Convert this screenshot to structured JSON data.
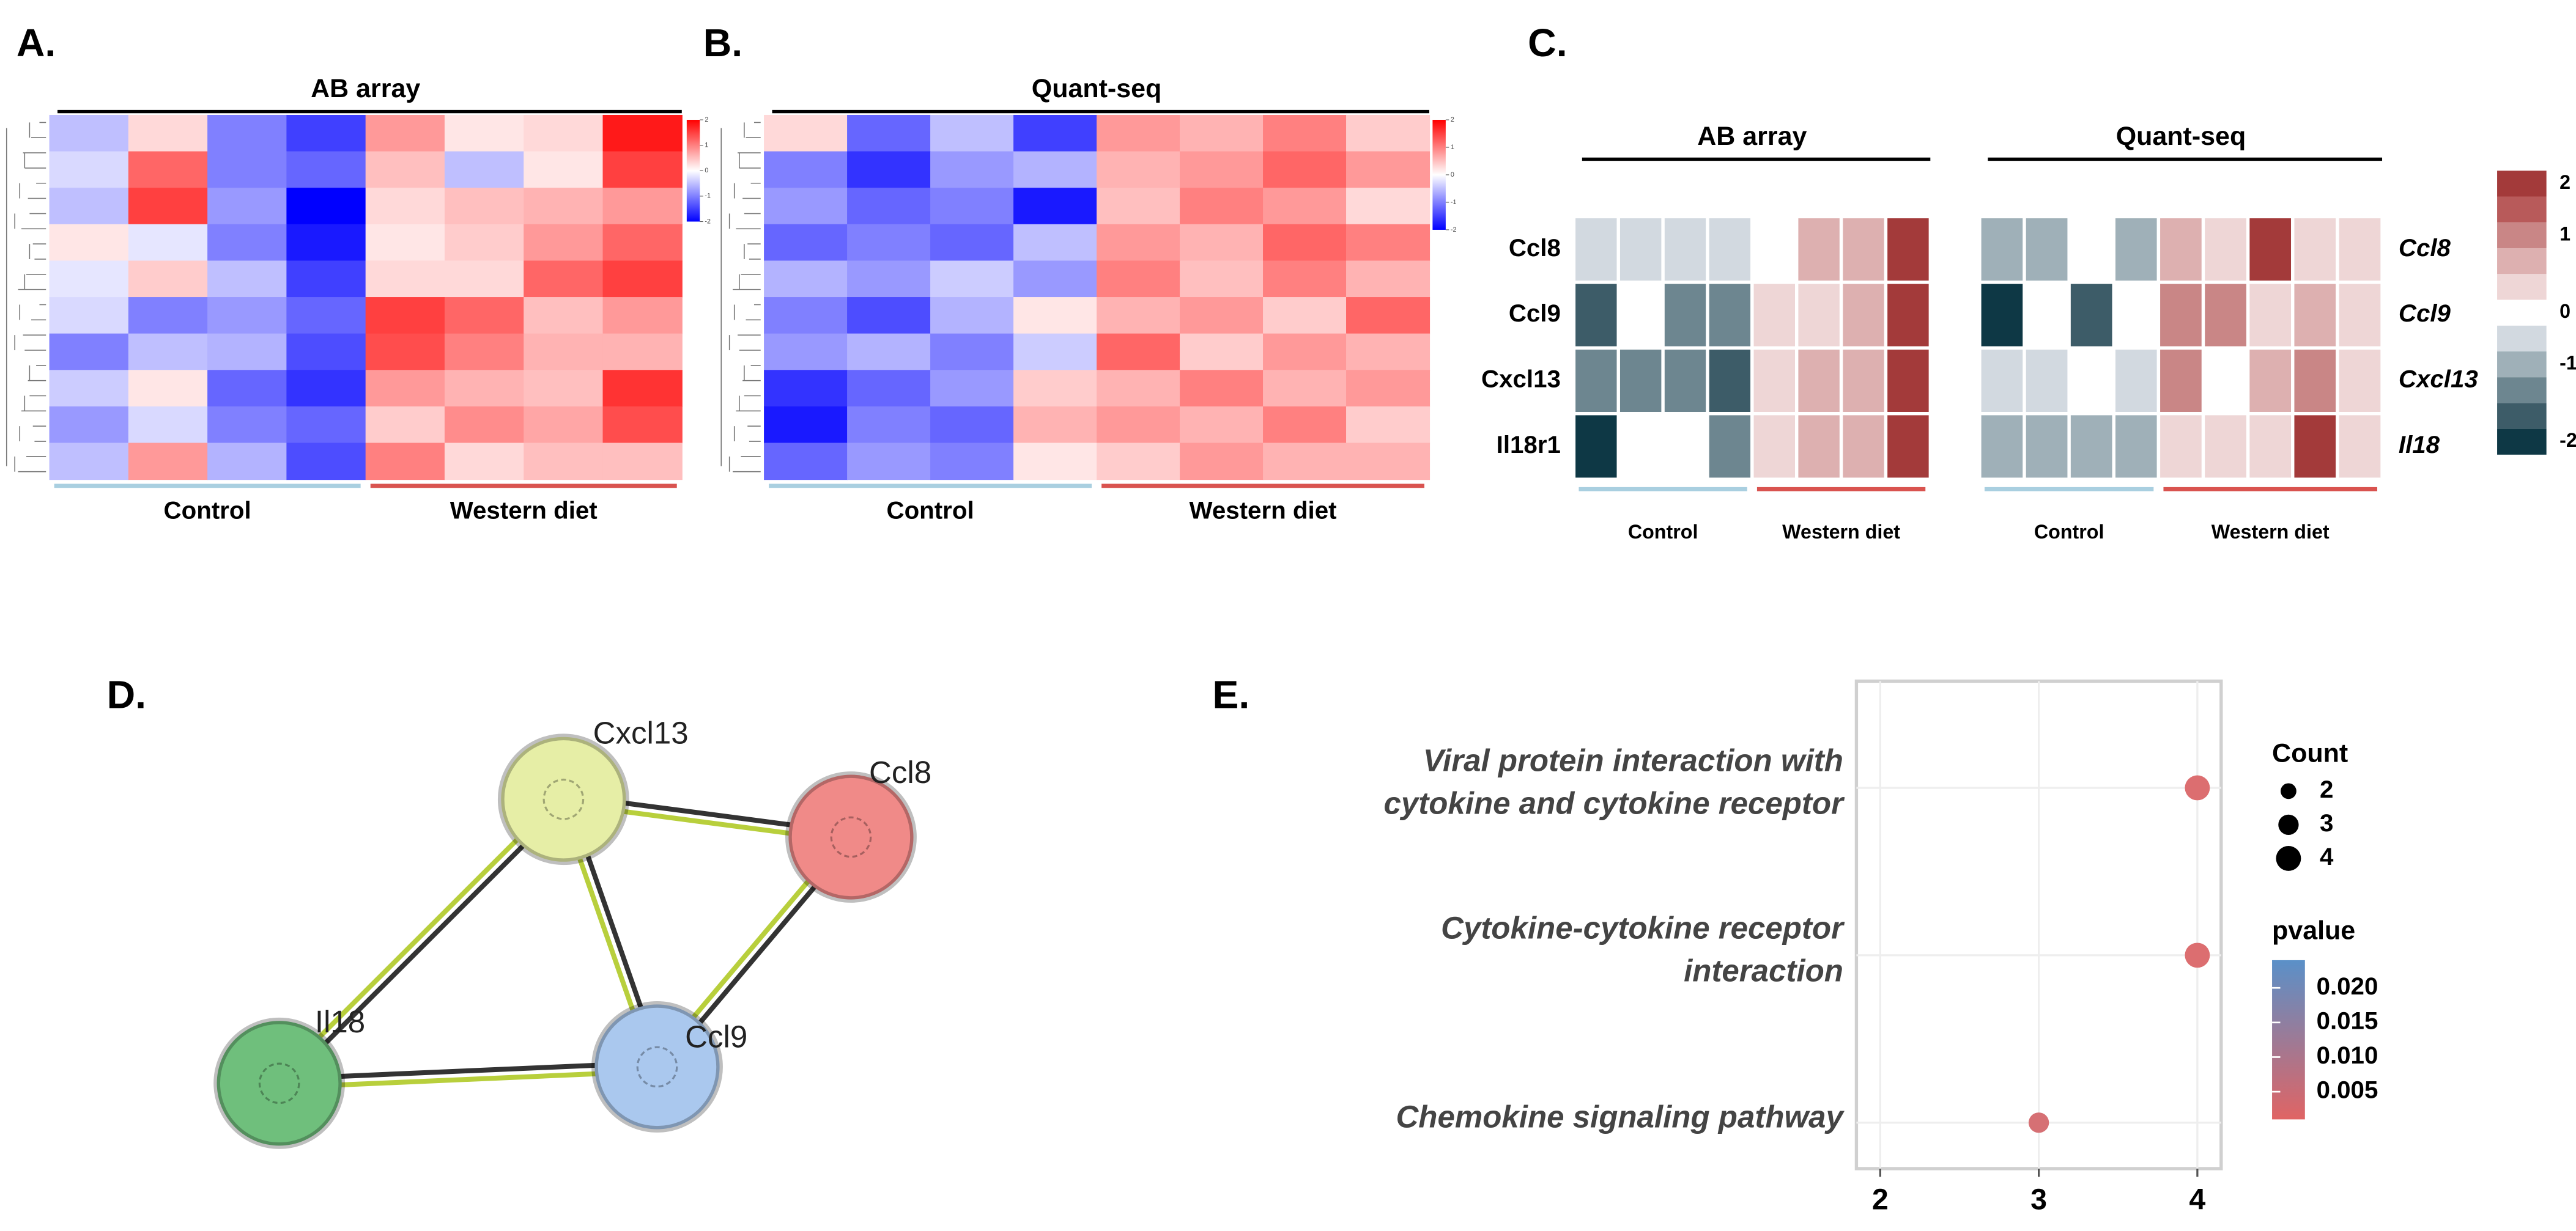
{
  "chart_data": [
    {
      "type": "heatmap",
      "panel": "A.",
      "title": "AB array",
      "zlim": [
        -2,
        2
      ],
      "zticks": [
        2,
        1,
        0,
        -1,
        -2
      ],
      "groups": [
        {
          "name": "Control",
          "columns": 4,
          "color": "#a9cfe0"
        },
        {
          "name": "Western diet",
          "columns": 4,
          "color": "#d9534f"
        }
      ],
      "values": [
        [
          -0.5,
          0.3,
          -1,
          -1.5,
          0.8,
          0.2,
          0.3,
          1.8
        ],
        [
          -0.3,
          1.2,
          -1,
          -1.2,
          0.5,
          -0.5,
          0.2,
          1.5
        ],
        [
          -0.5,
          1.5,
          -0.8,
          -2,
          0.3,
          0.5,
          0.6,
          0.8
        ],
        [
          0.2,
          -0.2,
          -1,
          -1.8,
          0.2,
          0.4,
          0.8,
          1.2
        ],
        [
          -0.2,
          0.4,
          -0.5,
          -1.5,
          0.3,
          0.3,
          1.2,
          1.5
        ],
        [
          -0.3,
          -1,
          -0.8,
          -1.2,
          1.5,
          1.2,
          0.5,
          0.8
        ],
        [
          -1,
          -0.5,
          -0.6,
          -1.4,
          1.4,
          1,
          0.6,
          0.6
        ],
        [
          -0.4,
          0.2,
          -1.2,
          -1.6,
          0.8,
          0.6,
          0.5,
          1.6
        ],
        [
          -0.8,
          -0.3,
          -1,
          -1.2,
          0.4,
          0.9,
          0.7,
          1.4
        ],
        [
          -0.5,
          0.8,
          -0.6,
          -1.4,
          1,
          0.3,
          0.5,
          0.5
        ]
      ]
    },
    {
      "type": "heatmap",
      "panel": "B.",
      "title": "Quant-seq",
      "zlim": [
        -2,
        2
      ],
      "zticks": [
        2,
        1,
        0,
        -1,
        -2
      ],
      "groups": [
        {
          "name": "Control",
          "columns": 4,
          "color": "#a9cfe0"
        },
        {
          "name": "Western diet",
          "columns": 4,
          "color": "#d9534f"
        }
      ],
      "values": [
        [
          0.3,
          -1.2,
          -0.5,
          -1.5,
          0.8,
          0.6,
          1,
          0.4
        ],
        [
          -1,
          -1.6,
          -0.8,
          -0.6,
          0.6,
          0.8,
          1.2,
          0.8
        ],
        [
          -0.8,
          -1.2,
          -1,
          -1.8,
          0.5,
          1,
          0.8,
          0.3
        ],
        [
          -1.2,
          -1,
          -1.2,
          -0.5,
          0.8,
          0.6,
          1.2,
          1
        ],
        [
          -0.6,
          -0.8,
          -0.4,
          -0.8,
          1,
          0.5,
          1,
          0.6
        ],
        [
          -1,
          -1.4,
          -0.6,
          0.2,
          0.6,
          0.8,
          0.4,
          1.2
        ],
        [
          -0.8,
          -0.6,
          -1,
          -0.4,
          1.2,
          0.4,
          0.8,
          0.6
        ],
        [
          -1.6,
          -1.2,
          -0.8,
          0.4,
          0.6,
          1,
          0.6,
          0.8
        ],
        [
          -1.8,
          -1,
          -1.2,
          0.6,
          0.8,
          0.6,
          1,
          0.4
        ],
        [
          -1.2,
          -0.8,
          -1,
          0.2,
          0.4,
          0.8,
          0.6,
          0.6
        ]
      ]
    },
    {
      "type": "heatmap",
      "panel": "C.",
      "title": "AB array",
      "zlim": [
        -2,
        2
      ],
      "colors": [
        "#0e3845",
        "#3d5c68",
        "#6d8690",
        "#9fb0b8",
        "#d2d9e0",
        "#ffffff",
        "#eed6d6",
        "#ddb0b0",
        "#c98686",
        "#b85a5a",
        "#a33a3a"
      ],
      "rows": [
        "Ccl8",
        "Ccl9",
        "Cxcl13",
        "Il18r1"
      ],
      "groups": [
        {
          "name": "Control",
          "columns": 4,
          "color": "#a9cfe0"
        },
        {
          "name": "Western diet",
          "columns": 4,
          "color": "#d9534f"
        }
      ],
      "values": [
        [
          -0.4,
          -0.4,
          -0.4,
          -0.4,
          0,
          0.8,
          0.8,
          2
        ],
        [
          -1.6,
          0,
          -1.2,
          -1.2,
          0.4,
          0.4,
          0.6,
          2
        ],
        [
          -1.2,
          -1.2,
          -1.2,
          -1.6,
          0.4,
          0.8,
          0.8,
          2
        ],
        [
          -2,
          0,
          0,
          -1.2,
          0.4,
          0.8,
          0.8,
          2
        ]
      ]
    },
    {
      "type": "heatmap",
      "title": "Quant-seq",
      "zlim": [
        -2,
        2
      ],
      "zticks": [
        2,
        1,
        0,
        -1,
        -2
      ],
      "colors": [
        "#0e3845",
        "#3d5c68",
        "#6d8690",
        "#9fb0b8",
        "#d2d9e0",
        "#ffffff",
        "#eed6d6",
        "#ddb0b0",
        "#c98686",
        "#b85a5a",
        "#a33a3a"
      ],
      "rows": [
        "Ccl8",
        "Ccl9",
        "Cxcl13",
        "Il18"
      ],
      "groups": [
        {
          "name": "Control",
          "columns": 4,
          "color": "#a9cfe0"
        },
        {
          "name": "Western diet",
          "columns": 5,
          "color": "#d9534f"
        }
      ],
      "values": [
        [
          -0.8,
          -0.8,
          0,
          -0.8,
          0.8,
          0.4,
          2,
          0.4,
          0.4
        ],
        [
          -2,
          0,
          -1.6,
          0,
          1.2,
          1.2,
          0.4,
          0.8,
          0.4
        ],
        [
          -0.4,
          -0.4,
          0,
          -0.4,
          1.2,
          0,
          0.8,
          1.2,
          0.4
        ],
        [
          -0.8,
          -0.8,
          -0.8,
          -0.8,
          0.4,
          0.4,
          0.4,
          2,
          0.4
        ]
      ]
    },
    {
      "type": "network",
      "panel": "D.",
      "nodes": [
        {
          "label": "Cxcl13",
          "color": "#e6eea6"
        },
        {
          "label": "Ccl8",
          "color": "#f08a88"
        },
        {
          "label": "Il18",
          "color": "#6fbf7c"
        },
        {
          "label": "Ccl9",
          "color": "#aac8ee"
        }
      ],
      "edges": [
        [
          0,
          1
        ],
        [
          0,
          2
        ],
        [
          0,
          3
        ],
        [
          1,
          3
        ],
        [
          2,
          3
        ]
      ]
    },
    {
      "type": "dot",
      "panel": "E.",
      "categories": [
        [
          "Viral protein interaction with",
          "cytokine and cytokine receptor"
        ],
        [
          "Cytokine-cytokine receptor",
          "interaction"
        ],
        [
          "Chemokine signaling pathway"
        ]
      ],
      "values": [
        4,
        4,
        3
      ],
      "pvalues": [
        0.002,
        0.002,
        0.003
      ],
      "xlim": [
        1.85,
        4.15
      ],
      "xticks": [
        2,
        3,
        4
      ],
      "size_title": "Count",
      "size_ticks": [
        2,
        3,
        4
      ],
      "color_title": "pvalue",
      "clim": [
        0.001,
        0.024
      ],
      "color_low": "#e06464",
      "color_high": "#5a90c8",
      "color_ticks": [
        {
          "value": 0.02,
          "label": "0.020"
        },
        {
          "value": 0.015,
          "label": "0.015"
        },
        {
          "value": 0.01,
          "label": "0.010"
        },
        {
          "value": 0.005,
          "label": "0.005"
        }
      ]
    }
  ]
}
